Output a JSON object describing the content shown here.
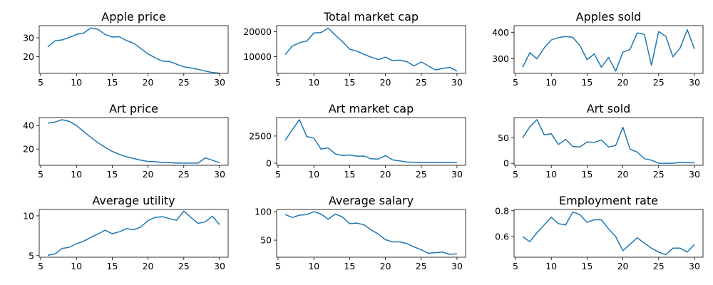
{
  "chart_data": [
    {
      "type": "line",
      "title": "Apple price",
      "xlim": [
        4.8,
        31.2
      ],
      "ylim": [
        11,
        36.5
      ],
      "xticks": [
        5,
        10,
        15,
        20,
        25,
        30
      ],
      "yticks": [
        20,
        30
      ],
      "ytick_labels": [
        "20",
        "30"
      ],
      "series": [
        {
          "color": "#1f77b4",
          "x": [
            6,
            7,
            8,
            9,
            10,
            11,
            12,
            13,
            14,
            15,
            16,
            17,
            18,
            19,
            20,
            21,
            22,
            23,
            24,
            25,
            26,
            27,
            28,
            29,
            30
          ],
          "y": [
            25.2,
            28.4,
            28.9,
            30.2,
            31.8,
            32.5,
            35.2,
            34.6,
            31.8,
            30.4,
            30.6,
            28.5,
            27.1,
            24.3,
            21.4,
            19.3,
            17.6,
            17.3,
            15.9,
            14.5,
            13.9,
            13.2,
            12.2,
            11.5,
            11.1
          ]
        }
      ]
    },
    {
      "type": "line",
      "title": "Total market cap",
      "xlim": [
        4.8,
        31.2
      ],
      "ylim": [
        3300,
        22400
      ],
      "xticks": [
        5,
        10,
        15,
        20,
        25,
        30
      ],
      "yticks": [
        10000,
        20000
      ],
      "ytick_labels": [
        "10000",
        "20000"
      ],
      "series": [
        {
          "color": "#1f77b4",
          "x": [
            6,
            7,
            8,
            9,
            10,
            11,
            12,
            13,
            14,
            15,
            16,
            17,
            18,
            19,
            20,
            21,
            22,
            23,
            24,
            25,
            26,
            27,
            28,
            29,
            30
          ],
          "y": [
            10800,
            14300,
            15600,
            16200,
            19500,
            19600,
            21400,
            18600,
            16000,
            13000,
            12200,
            10900,
            9800,
            8800,
            9800,
            8400,
            8600,
            8000,
            6300,
            7900,
            6300,
            4700,
            5300,
            5700,
            4200
          ]
        }
      ]
    },
    {
      "type": "line",
      "title": "Apples sold",
      "xlim": [
        4.8,
        31.2
      ],
      "ylim": [
        245,
        425
      ],
      "xticks": [
        5,
        10,
        15,
        20,
        25,
        30
      ],
      "yticks": [
        300,
        400
      ],
      "ytick_labels": [
        "300",
        "400"
      ],
      "series": [
        {
          "color": "#1f77b4",
          "x": [
            6,
            7,
            8,
            9,
            10,
            11,
            12,
            13,
            14,
            15,
            16,
            17,
            18,
            19,
            20,
            21,
            22,
            23,
            24,
            25,
            26,
            27,
            28,
            29,
            30
          ],
          "y": [
            268,
            323,
            300,
            341,
            371,
            380,
            384,
            381,
            350,
            297,
            318,
            268,
            305,
            254,
            325,
            335,
            398,
            392,
            276,
            403,
            385,
            307,
            341,
            410,
            337
          ]
        }
      ]
    },
    {
      "type": "line",
      "title": "Art price",
      "xlim": [
        4.8,
        31.2
      ],
      "ylim": [
        6.2,
        46.8
      ],
      "xticks": [
        5,
        10,
        15,
        20,
        25,
        30
      ],
      "yticks": [
        20,
        40
      ],
      "ytick_labels": [
        "20",
        "40"
      ],
      "series": [
        {
          "color": "#1f77b4",
          "x": [
            6,
            7,
            8,
            9,
            10,
            11,
            12,
            13,
            14,
            15,
            16,
            17,
            18,
            19,
            20,
            21,
            22,
            23,
            24,
            25,
            26,
            27,
            28,
            29,
            30
          ],
          "y": [
            42,
            43,
            45,
            43.5,
            40,
            35,
            30,
            25.5,
            21.5,
            18,
            15.5,
            13.5,
            12,
            10.5,
            9.5,
            9.3,
            8.6,
            8.5,
            8.1,
            8.1,
            8.1,
            8.1,
            12.5,
            10.5,
            8.4
          ]
        }
      ]
    },
    {
      "type": "line",
      "title": "Art market cap",
      "xlim": [
        4.8,
        31.2
      ],
      "ylim": [
        -200,
        4200
      ],
      "xticks": [
        5,
        10,
        15,
        20,
        25,
        30
      ],
      "yticks": [
        0,
        2500
      ],
      "ytick_labels": [
        "0",
        "2500"
      ],
      "series": [
        {
          "color": "#1f77b4",
          "x": [
            6,
            7,
            8,
            9,
            10,
            11,
            12,
            13,
            14,
            15,
            16,
            17,
            18,
            19,
            20,
            21,
            22,
            23,
            24,
            25,
            26,
            27,
            28,
            29,
            30
          ],
          "y": [
            2100,
            3100,
            4000,
            2450,
            2300,
            1300,
            1400,
            850,
            700,
            750,
            650,
            650,
            400,
            380,
            700,
            300,
            200,
            100,
            80,
            50,
            40,
            40,
            50,
            40,
            40
          ]
        }
      ]
    },
    {
      "type": "line",
      "title": "Art sold",
      "xlim": [
        4.8,
        31.2
      ],
      "ylim": [
        -4,
        90
      ],
      "xticks": [
        5,
        10,
        15,
        20,
        25,
        30
      ],
      "yticks": [
        0,
        50
      ],
      "ytick_labels": [
        "0",
        "50"
      ],
      "series": [
        {
          "color": "#1f77b4",
          "x": [
            6,
            7,
            8,
            9,
            10,
            11,
            12,
            13,
            14,
            15,
            16,
            17,
            18,
            19,
            20,
            21,
            22,
            23,
            24,
            25,
            26,
            27,
            28,
            29,
            30
          ],
          "y": [
            50,
            72,
            86,
            56,
            58,
            37,
            47,
            33,
            32,
            42,
            41,
            46,
            32,
            35,
            71,
            28,
            22,
            9,
            6,
            0,
            0,
            0,
            2,
            1,
            1
          ]
        }
      ]
    },
    {
      "type": "line",
      "title": "Average utility",
      "xlim": [
        4.8,
        31.2
      ],
      "ylim": [
        4.8,
        10.8
      ],
      "xticks": [
        5,
        10,
        15,
        20,
        25,
        30
      ],
      "yticks": [
        5,
        10
      ],
      "ytick_labels": [
        "5",
        "10"
      ],
      "series": [
        {
          "color": "#1f77b4",
          "x": [
            6,
            7,
            8,
            9,
            10,
            11,
            12,
            13,
            14,
            15,
            16,
            17,
            18,
            19,
            20,
            21,
            22,
            23,
            24,
            25,
            26,
            27,
            28,
            29,
            30
          ],
          "y": [
            5.05,
            5.2,
            5.9,
            6.05,
            6.5,
            6.8,
            7.3,
            7.7,
            8.2,
            7.75,
            8.0,
            8.4,
            8.25,
            8.6,
            9.4,
            9.8,
            9.9,
            9.65,
            9.45,
            10.6,
            9.8,
            9.05,
            9.25,
            9.95,
            8.9
          ]
        }
      ]
    },
    {
      "type": "line",
      "title": "Average salary",
      "xlim": [
        4.8,
        31.2
      ],
      "ylim": [
        20,
        104
      ],
      "xticks": [
        5,
        10,
        15,
        20,
        25,
        30
      ],
      "yticks": [
        50,
        100
      ],
      "ytick_labels": [
        "50",
        "100"
      ],
      "series": [
        {
          "color": "#1f77b4",
          "x": [
            6,
            7,
            8,
            9,
            10,
            11,
            12,
            13,
            14,
            15,
            16,
            17,
            18,
            19,
            20,
            21,
            22,
            23,
            24,
            25,
            26,
            27,
            28,
            29,
            30
          ],
          "y": [
            95,
            90,
            94,
            95,
            100,
            96,
            87,
            96,
            91,
            79,
            80,
            77,
            68,
            61,
            51,
            47,
            47,
            44,
            38,
            33,
            27,
            28,
            29,
            25,
            26
          ]
        }
      ]
    },
    {
      "type": "line",
      "title": "Employment rate",
      "xlim": [
        4.8,
        31.2
      ],
      "ylim": [
        0.44,
        0.81
      ],
      "xticks": [
        5,
        10,
        15,
        20,
        25,
        30
      ],
      "yticks": [
        0.6,
        0.8
      ],
      "ytick_labels": [
        "0.6",
        "0.8"
      ],
      "series": [
        {
          "color": "#1f77b4",
          "x": [
            6,
            7,
            8,
            9,
            10,
            11,
            12,
            13,
            14,
            15,
            16,
            17,
            18,
            19,
            20,
            21,
            22,
            23,
            24,
            25,
            26,
            27,
            28,
            29,
            30
          ],
          "y": [
            0.6,
            0.56,
            0.63,
            0.69,
            0.75,
            0.7,
            0.69,
            0.79,
            0.77,
            0.71,
            0.73,
            0.73,
            0.66,
            0.6,
            0.49,
            0.54,
            0.59,
            0.55,
            0.51,
            0.48,
            0.46,
            0.51,
            0.51,
            0.48,
            0.54
          ]
        }
      ]
    }
  ]
}
